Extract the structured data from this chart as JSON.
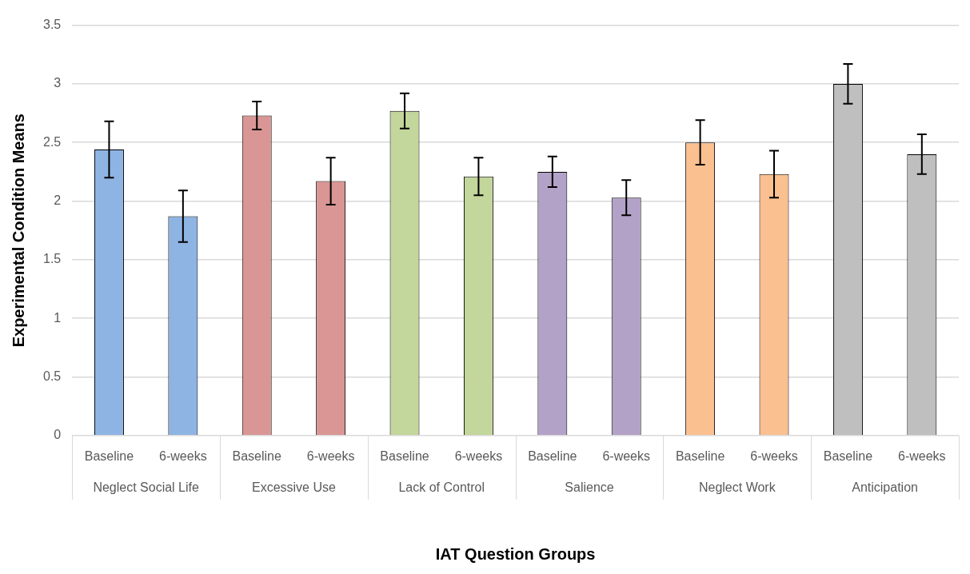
{
  "chart_data": {
    "type": "bar",
    "xlabel": "IAT Question Groups",
    "ylabel": "Experimental Condition Means",
    "categories": [
      "Neglect Social Life",
      "Excessive Use",
      "Lack of Control",
      "Salience",
      "Neglect Work",
      "Anticipation"
    ],
    "series": [
      {
        "name": "Baseline",
        "colors": [
          "#8eb4e3",
          "#d99694",
          "#c3d69b",
          "#b3a2c7",
          "#fac090",
          "#bfbfbf"
        ],
        "values": [
          2.44,
          2.73,
          2.77,
          2.25,
          2.5,
          3.0
        ],
        "errors": [
          0.24,
          0.12,
          0.15,
          0.13,
          0.19,
          0.17
        ]
      },
      {
        "name": "6-weeks",
        "colors": [
          "#8eb4e3",
          "#d99694",
          "#c3d69b",
          "#b3a2c7",
          "#fac090",
          "#bfbfbf"
        ],
        "values": [
          1.87,
          2.17,
          2.21,
          2.03,
          2.23,
          2.4
        ],
        "errors": [
          0.22,
          0.2,
          0.16,
          0.15,
          0.2,
          0.17
        ]
      }
    ],
    "ylim": [
      0,
      3.5
    ],
    "yticks": [
      0,
      0.5,
      1,
      1.5,
      2,
      2.5,
      3,
      3.5
    ],
    "grid": "y",
    "legend": false
  }
}
